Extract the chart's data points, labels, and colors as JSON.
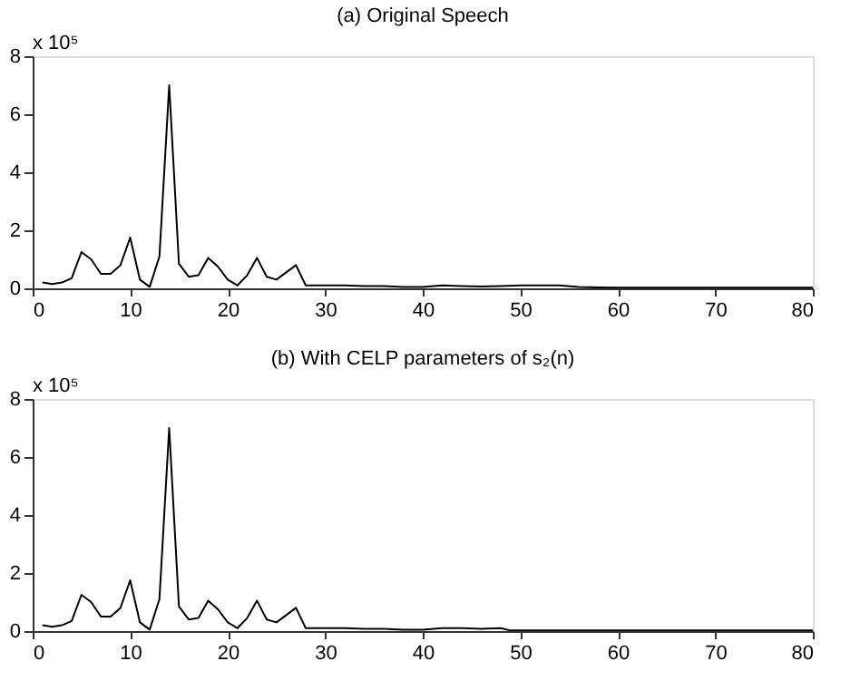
{
  "chart_data": [
    {
      "type": "line",
      "title": "(a) Original Speech",
      "annotations": [
        "x 10⁵"
      ],
      "x": [
        1,
        2,
        3,
        4,
        5,
        6,
        7,
        8,
        9,
        10,
        11,
        12,
        13,
        14,
        15,
        16,
        17,
        18,
        19,
        20,
        21,
        22,
        23,
        24,
        25,
        26,
        27,
        28,
        30,
        32,
        34,
        36,
        38,
        40,
        42,
        44,
        46,
        48,
        50,
        52,
        54,
        56,
        58,
        60,
        65,
        70,
        75,
        80
      ],
      "series": [
        {
          "color": "#000000",
          "values": [
            0.2,
            0.15,
            0.2,
            0.35,
            1.25,
            1.0,
            0.5,
            0.5,
            0.8,
            1.75,
            0.3,
            0.05,
            1.1,
            7.0,
            0.85,
            0.4,
            0.45,
            1.05,
            0.75,
            0.3,
            0.1,
            0.45,
            1.05,
            0.4,
            0.3,
            0.55,
            0.8,
            0.1,
            0.1,
            0.1,
            0.08,
            0.08,
            0.05,
            0.05,
            0.1,
            0.08,
            0.06,
            0.08,
            0.1,
            0.1,
            0.1,
            0.05,
            0.03,
            0.02,
            0.02,
            0.02,
            0.02,
            0.02
          ]
        }
      ],
      "xlim": [
        0,
        80
      ],
      "xticks": [
        0,
        10,
        20,
        30,
        40,
        50,
        60,
        70,
        80
      ],
      "ylim": [
        0,
        8
      ],
      "yticks": [
        0,
        2,
        4,
        6,
        8
      ],
      "grid": false,
      "line_style": "solid"
    },
    {
      "type": "line",
      "title": "(b) With CELP parameters of s₂(n)",
      "annotations": [
        "x 10⁵"
      ],
      "x": [
        1,
        2,
        3,
        4,
        5,
        6,
        7,
        8,
        9,
        10,
        11,
        12,
        13,
        14,
        15,
        16,
        17,
        18,
        19,
        20,
        21,
        22,
        23,
        24,
        25,
        26,
        27,
        28,
        30,
        32,
        34,
        36,
        38,
        40,
        42,
        44,
        46,
        48,
        49,
        52,
        56,
        60,
        65,
        70,
        75,
        80
      ],
      "series": [
        {
          "color": "#000000",
          "values": [
            0.2,
            0.15,
            0.2,
            0.35,
            1.25,
            1.0,
            0.5,
            0.5,
            0.8,
            1.75,
            0.3,
            0.05,
            1.1,
            7.0,
            0.85,
            0.4,
            0.45,
            1.05,
            0.75,
            0.3,
            0.1,
            0.45,
            1.05,
            0.4,
            0.3,
            0.55,
            0.8,
            0.1,
            0.1,
            0.1,
            0.08,
            0.08,
            0.05,
            0.05,
            0.1,
            0.1,
            0.08,
            0.1,
            0.02,
            0.02,
            0.02,
            0.02,
            0.02,
            0.02,
            0.02,
            0.02
          ]
        }
      ],
      "xlim": [
        0,
        80
      ],
      "xticks": [
        0,
        10,
        20,
        30,
        40,
        50,
        60,
        70,
        80
      ],
      "ylim": [
        0,
        8
      ],
      "yticks": [
        0,
        2,
        4,
        6,
        8
      ],
      "grid": false,
      "line_style": "solid"
    }
  ]
}
